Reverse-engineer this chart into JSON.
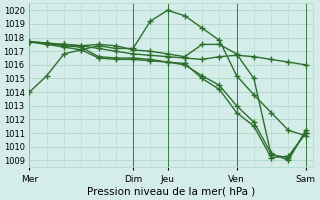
{
  "bg_color": "#d4ede8",
  "grid_color": "#b0d8cc",
  "line_color": "#2d6e2d",
  "xlabel": "Pression niveau de la mer( hPa )",
  "ylim": [
    1008.5,
    1020.5
  ],
  "yticks": [
    1009,
    1010,
    1011,
    1012,
    1013,
    1014,
    1015,
    1016,
    1017,
    1018,
    1019,
    1020
  ],
  "xlim": [
    0,
    8.2
  ],
  "xtick_positions": [
    0.0,
    3.0,
    4.0,
    6.0,
    8.0
  ],
  "xtick_labels": [
    "Mer",
    "Dim",
    "Jeu",
    "Ven",
    "Sam"
  ],
  "lines": [
    {
      "x": [
        0.0,
        0.5,
        1.0,
        1.5,
        2.0,
        2.5,
        3.0,
        3.5,
        4.0,
        4.5,
        5.0,
        5.5,
        6.0,
        6.5,
        7.0,
        7.5,
        8.0
      ],
      "y": [
        1014.0,
        1015.2,
        1016.8,
        1017.1,
        1017.4,
        1017.2,
        1017.2,
        1019.2,
        1020.0,
        1019.6,
        1018.7,
        1017.8,
        1015.2,
        1013.8,
        1012.5,
        1011.2,
        1010.8
      ]
    },
    {
      "x": [
        0.0,
        0.5,
        1.0,
        1.5,
        2.0,
        2.5,
        3.0,
        3.5,
        4.0,
        4.5,
        5.0,
        5.5,
        6.0,
        6.5,
        7.0,
        7.5,
        8.0
      ],
      "y": [
        1017.7,
        1017.5,
        1017.5,
        1017.4,
        1017.5,
        1017.4,
        1017.1,
        1017.0,
        1016.8,
        1016.6,
        1017.5,
        1017.5,
        1016.8,
        1015.0,
        1009.4,
        1009.2,
        1011.0
      ]
    },
    {
      "x": [
        0.0,
        0.5,
        1.0,
        1.5,
        2.0,
        2.5,
        3.0,
        3.5,
        4.0,
        4.5,
        5.0,
        5.5,
        6.0,
        6.5,
        7.0,
        7.5,
        8.0
      ],
      "y": [
        1017.7,
        1017.6,
        1017.5,
        1017.4,
        1017.2,
        1017.0,
        1016.8,
        1016.7,
        1016.6,
        1016.5,
        1016.4,
        1016.6,
        1016.7,
        1016.6,
        1016.4,
        1016.2,
        1016.0
      ]
    },
    {
      "x": [
        0.0,
        0.5,
        1.0,
        1.5,
        2.0,
        2.5,
        3.0,
        3.5,
        4.0,
        4.5,
        5.0,
        5.5,
        6.0,
        6.5,
        7.0,
        7.5,
        8.0
      ],
      "y": [
        1017.7,
        1017.6,
        1017.4,
        1017.3,
        1016.6,
        1016.5,
        1016.5,
        1016.4,
        1016.2,
        1016.0,
        1015.2,
        1014.5,
        1013.0,
        1011.8,
        1009.5,
        1009.0,
        1011.2
      ]
    },
    {
      "x": [
        0.0,
        0.5,
        1.0,
        1.5,
        2.0,
        2.5,
        3.0,
        3.5,
        4.0,
        4.5,
        5.0,
        5.5,
        6.0,
        6.5,
        7.0,
        7.5,
        8.0
      ],
      "y": [
        1017.7,
        1017.5,
        1017.3,
        1017.1,
        1016.5,
        1016.4,
        1016.4,
        1016.3,
        1016.2,
        1016.1,
        1015.0,
        1014.2,
        1012.5,
        1011.5,
        1009.2,
        1009.3,
        1011.0
      ]
    }
  ],
  "vlines_x": [
    0.0,
    3.0,
    4.0,
    6.0,
    8.0
  ],
  "marker": "+",
  "markersize": 4,
  "markeredgewidth": 1.0,
  "linewidth": 1.0,
  "ytick_fontsize": 6.0,
  "xtick_fontsize": 6.5,
  "xlabel_fontsize": 7.5
}
